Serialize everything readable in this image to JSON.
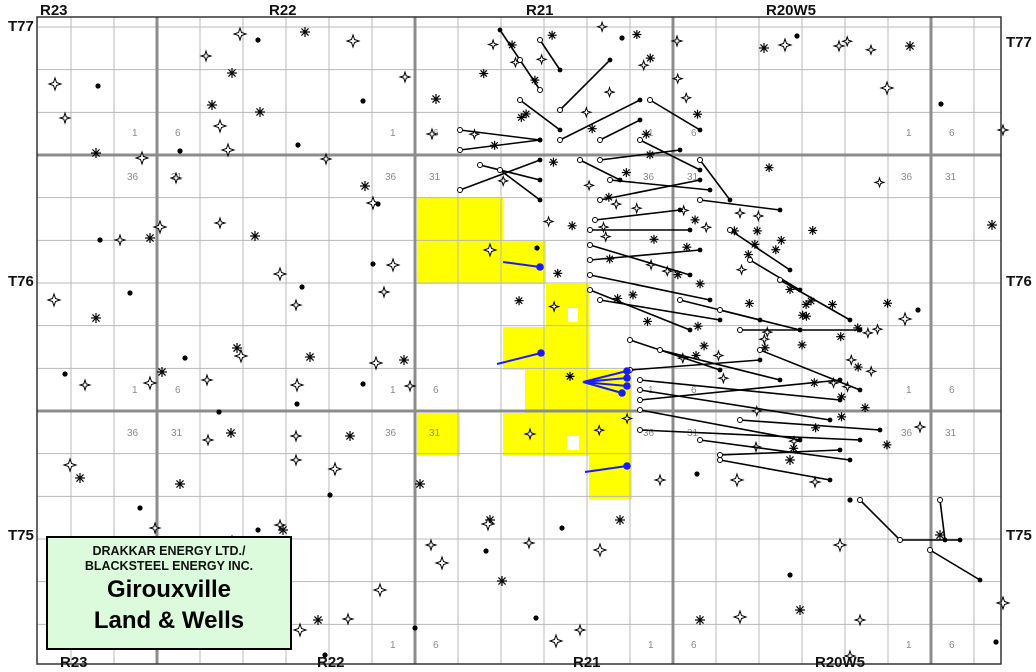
{
  "map": {
    "range_labels_top": [
      "R23",
      "R22",
      "R21",
      "R20W5"
    ],
    "range_labels_bottom": [
      "R23",
      "R22",
      "R21",
      "R20W5"
    ],
    "township_labels_left": [
      "T77",
      "T76",
      "T75"
    ],
    "township_labels_right": [
      "T77",
      "T76",
      "T75"
    ],
    "section_number_labels": [
      "1",
      "6",
      "36",
      "31"
    ],
    "colors": {
      "land_parcel": "#ffff00",
      "company_wells": "#1a1aff",
      "grid_major": "#8c8c8c",
      "grid_minor": "#b8b8b8",
      "wells": "#000000"
    },
    "well_symbols": [
      "oil-well-dot",
      "gas-well-asterisk",
      "abandoned-well-star",
      "cased-well-circle",
      "horizontal-well-path"
    ]
  },
  "legend": {
    "companies": [
      "DRAKKAR ENERGY LTD./",
      "BLACKSTEEL ENERGY INC."
    ],
    "title_line1": "Girouxville",
    "title_line2": "Land & Wells"
  }
}
